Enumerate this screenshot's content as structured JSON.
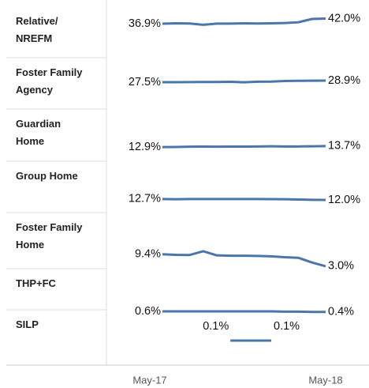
{
  "chart_data": {
    "type": "line",
    "categories": [
      "May-17",
      null,
      null,
      null,
      null,
      null,
      null,
      null,
      null,
      null,
      null,
      null,
      "May-18"
    ],
    "series": [
      {
        "name": "Relative/ NREFM",
        "color": "#4a76a8",
        "ylim": [
          0,
          51
        ],
        "values": [
          36.9,
          37.3,
          37.1,
          35.8,
          37.0,
          37.0,
          37.3,
          37.1,
          37.3,
          37.6,
          38.3,
          41.6,
          42.0
        ],
        "value_labels": [
          "36.9%",
          null,
          null,
          null,
          null,
          null,
          null,
          null,
          null,
          null,
          null,
          null,
          "42.0%"
        ]
      },
      {
        "name": "Foster Family Agency",
        "color": "#4a76a8",
        "ylim": [
          0,
          47
        ],
        "values": [
          27.5,
          27.5,
          27.6,
          27.7,
          27.7,
          27.8,
          27.4,
          27.9,
          28.0,
          28.6,
          28.7,
          28.8,
          28.9
        ],
        "value_labels": [
          "27.5%",
          null,
          null,
          null,
          null,
          null,
          null,
          null,
          null,
          null,
          null,
          null,
          "28.9%"
        ]
      },
      {
        "name": "Guardian Home",
        "color": "#4a76a8",
        "ylim": [
          0,
          39
        ],
        "values": [
          12.9,
          13.0,
          13.2,
          13.3,
          13.2,
          13.3,
          13.3,
          13.4,
          13.5,
          13.4,
          13.4,
          13.5,
          13.7
        ],
        "value_labels": [
          "12.9%",
          null,
          null,
          null,
          null,
          null,
          null,
          null,
          null,
          null,
          null,
          null,
          "13.7%"
        ]
      },
      {
        "name": "Group Home",
        "color": "#4a76a8",
        "ylim": [
          0,
          39
        ],
        "values": [
          12.7,
          12.5,
          12.7,
          12.7,
          12.7,
          12.7,
          12.7,
          12.7,
          12.6,
          12.5,
          12.3,
          12.1,
          12.0
        ],
        "value_labels": [
          "12.7%",
          null,
          null,
          null,
          null,
          null,
          null,
          null,
          null,
          null,
          null,
          null,
          "12.0%"
        ]
      },
      {
        "name": "Foster Family Home",
        "color": "#4a76a8",
        "ylim": [
          0,
          30
        ],
        "values": [
          9.4,
          9.1,
          9.0,
          11.0,
          8.8,
          8.6,
          8.6,
          8.5,
          8.3,
          7.8,
          7.5,
          5.0,
          3.0
        ],
        "value_labels": [
          "9.4%",
          null,
          null,
          null,
          null,
          null,
          null,
          null,
          null,
          null,
          null,
          null,
          "3.0%"
        ]
      },
      {
        "name": "THP+FC",
        "color": "#4a76a8",
        "ylim": [
          0,
          16
        ],
        "values": [
          0.6,
          0.6,
          0.6,
          0.6,
          0.6,
          0.6,
          0.6,
          0.6,
          0.6,
          0.5,
          0.5,
          0.4,
          0.4
        ],
        "value_labels": [
          "0.6%",
          null,
          null,
          null,
          null,
          null,
          null,
          null,
          null,
          null,
          null,
          null,
          "0.4%"
        ]
      },
      {
        "name": "SILP",
        "color": "#4a76a8",
        "ylim": [
          0,
          0.2
        ],
        "values": [
          null,
          null,
          null,
          null,
          null,
          0.1,
          0.1,
          0.1,
          0.1,
          null,
          null,
          null,
          null
        ],
        "value_labels": [
          null,
          null,
          null,
          null,
          null,
          "0.1%",
          null,
          null,
          "0.1%",
          null,
          null,
          null,
          null
        ]
      }
    ]
  }
}
